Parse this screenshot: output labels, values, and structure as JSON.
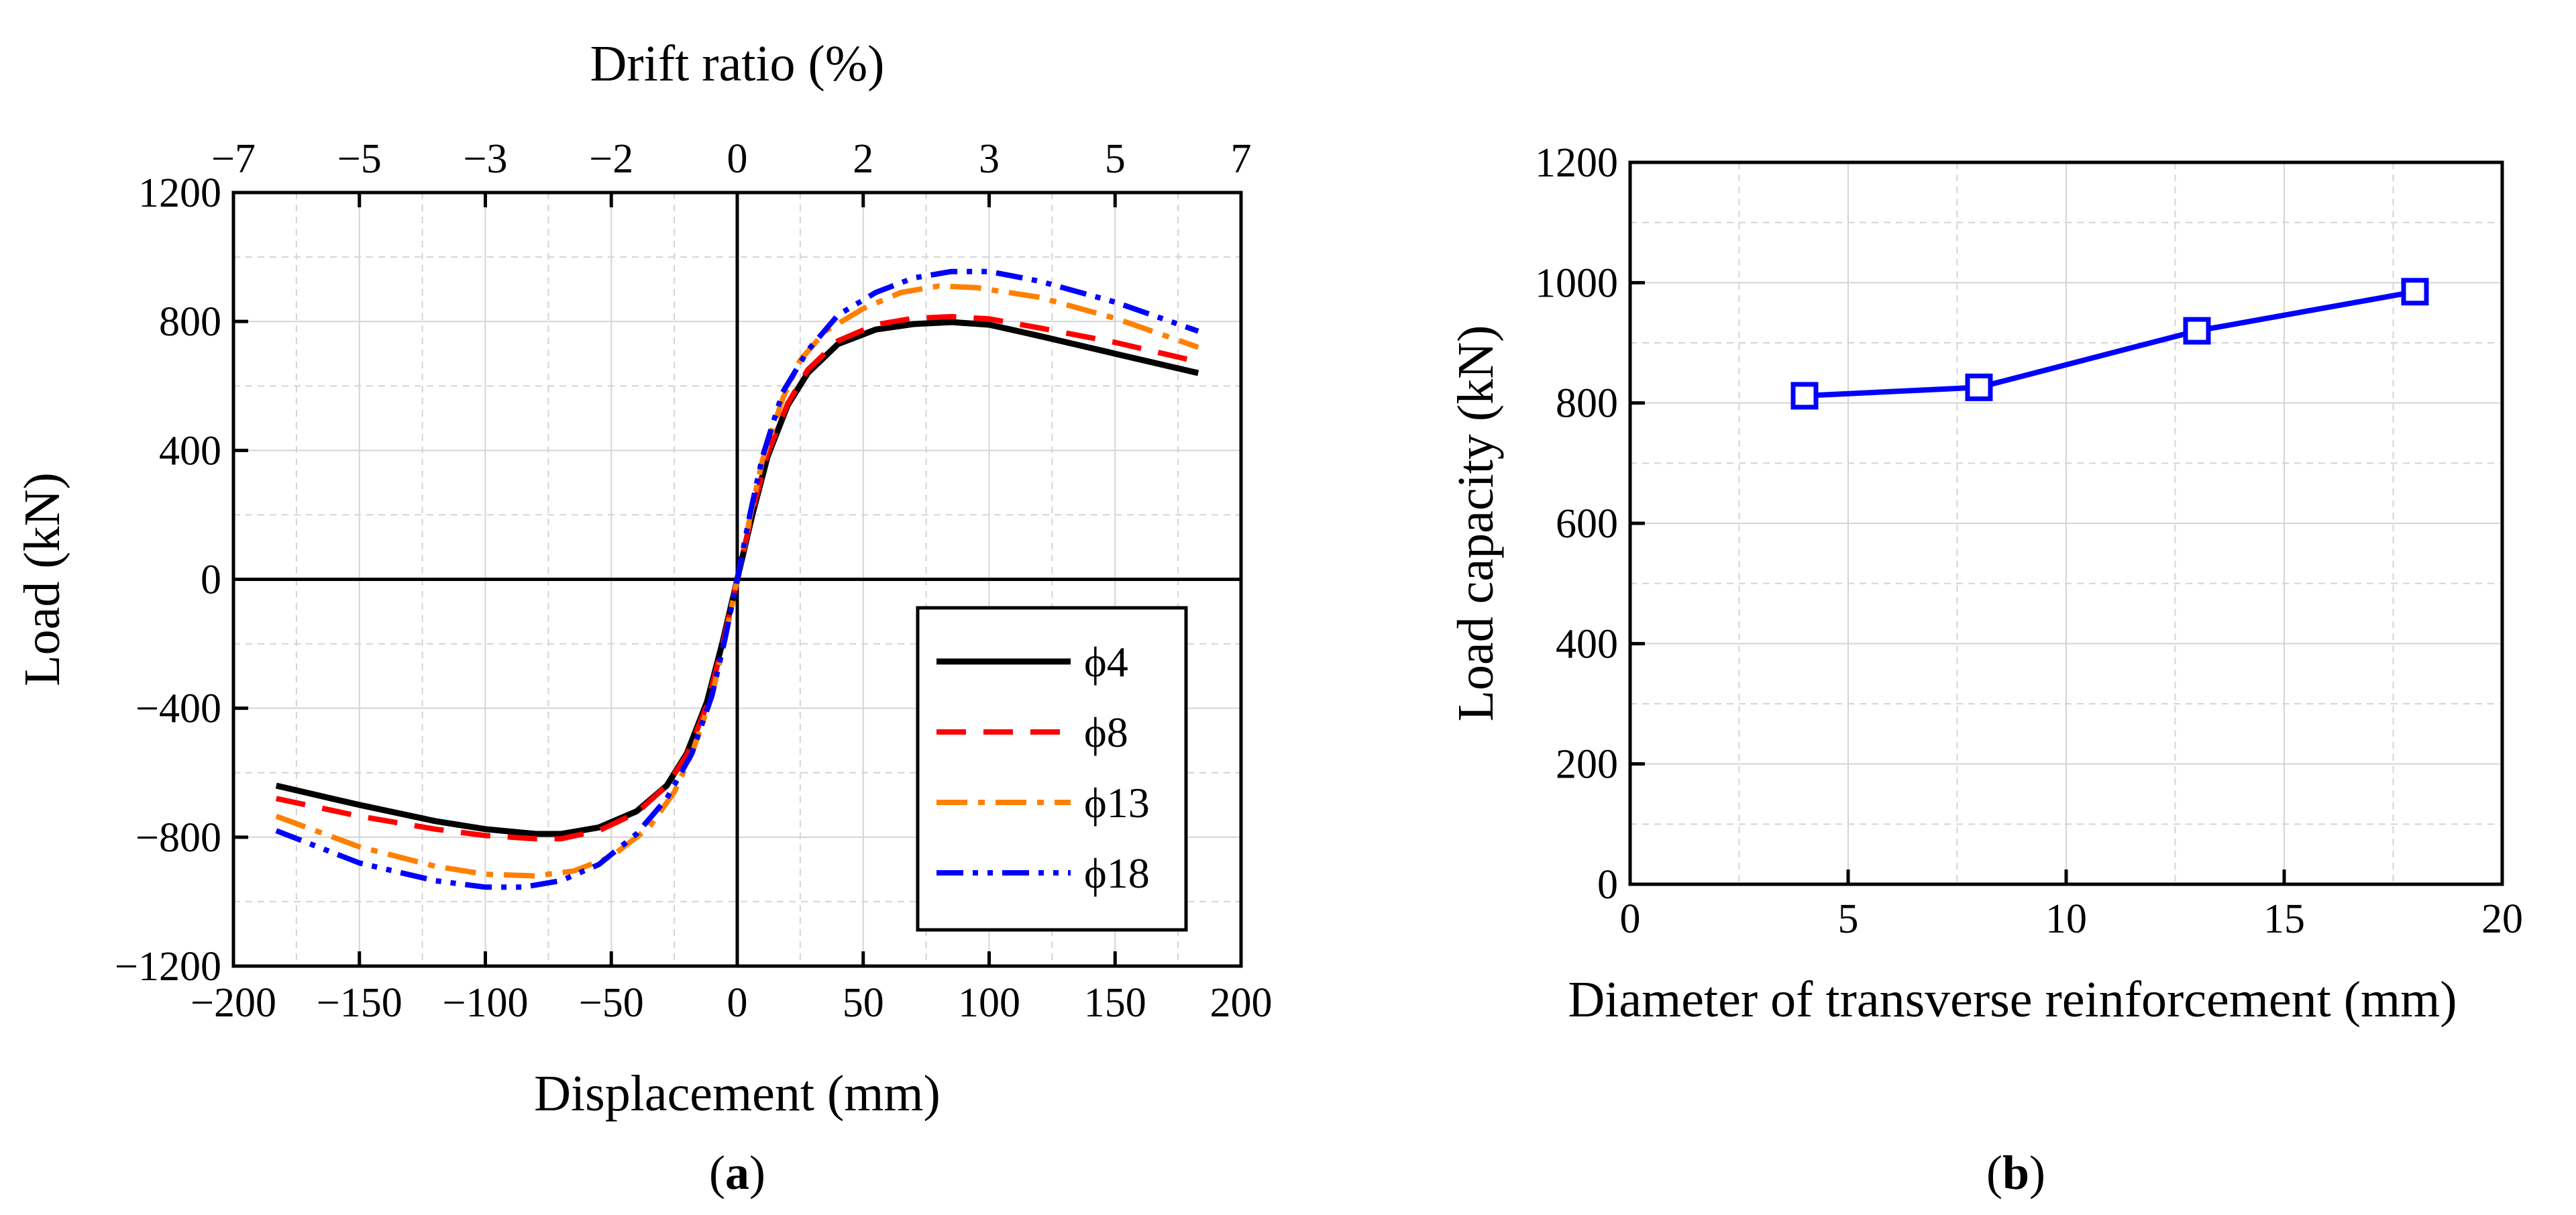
{
  "panels": {
    "a": {
      "caption_open": "(",
      "caption_letter": "a",
      "caption_close": ")"
    },
    "b": {
      "caption_open": "(",
      "caption_letter": "b",
      "caption_close": ")"
    }
  },
  "chart_data": [
    {
      "type": "line",
      "panel": "a",
      "title": "",
      "xlabel": "Displacement (mm)",
      "ylabel": "Load (kN)",
      "x2label": "Drift ratio (%)",
      "xlim": [
        -200,
        200
      ],
      "ylim": [
        -1200,
        1200
      ],
      "xticks": [
        -200,
        -150,
        -100,
        -50,
        0,
        50,
        100,
        150,
        200
      ],
      "xtick_labels": [
        "−200",
        "−150",
        "−100",
        "−50",
        "0",
        "50",
        "100",
        "150",
        "200"
      ],
      "yticks": [
        -1200,
        -800,
        -400,
        0,
        400,
        800,
        1200
      ],
      "ytick_labels": [
        "−1200",
        "−800",
        "−400",
        "0",
        "400",
        "800",
        "1200"
      ],
      "x2ticks": [
        -200,
        -150,
        -100,
        -50,
        0,
        50,
        100,
        150,
        200
      ],
      "x2tick_labels": [
        "−7",
        "−5",
        "−3",
        "−2",
        "0",
        "2",
        "3",
        "5",
        "7"
      ],
      "grid": true,
      "zero_lines": true,
      "legend_position": "bottom-right",
      "series": [
        {
          "name": "ϕ4",
          "color": "#000000",
          "dash": "solid",
          "x": [
            -183,
            -150,
            -120,
            -100,
            -80,
            -70,
            -55,
            -40,
            -28,
            -20,
            -12,
            -6,
            0,
            6,
            12,
            20,
            28,
            40,
            55,
            70,
            85,
            100,
            120,
            150,
            183
          ],
          "y": [
            -640,
            -700,
            -750,
            -775,
            -790,
            -790,
            -770,
            -720,
            -640,
            -540,
            -380,
            -200,
            0,
            200,
            380,
            540,
            640,
            730,
            775,
            792,
            798,
            790,
            755,
            700,
            640
          ]
        },
        {
          "name": "ϕ8",
          "color": "#ff0000",
          "dash": "dashed",
          "x": [
            -183,
            -150,
            -120,
            -100,
            -80,
            -70,
            -55,
            -40,
            -28,
            -20,
            -12,
            -6,
            0,
            6,
            12,
            20,
            28,
            40,
            55,
            70,
            85,
            100,
            120,
            150,
            183
          ],
          "y": [
            -680,
            -735,
            -775,
            -795,
            -805,
            -805,
            -780,
            -725,
            -640,
            -545,
            -390,
            -210,
            0,
            210,
            390,
            545,
            650,
            740,
            790,
            810,
            815,
            808,
            780,
            735,
            675
          ]
        },
        {
          "name": "ϕ13",
          "color": "#ff8000",
          "dash": "dashdot",
          "x": [
            -183,
            -150,
            -120,
            -100,
            -80,
            -65,
            -50,
            -35,
            -25,
            -18,
            -10,
            -5,
            0,
            5,
            10,
            18,
            25,
            35,
            50,
            65,
            80,
            95,
            120,
            150,
            183
          ],
          "y": [
            -735,
            -830,
            -890,
            -915,
            -920,
            -905,
            -860,
            -770,
            -660,
            -540,
            -360,
            -190,
            0,
            190,
            370,
            560,
            680,
            770,
            840,
            890,
            910,
            905,
            875,
            810,
            720
          ]
        },
        {
          "name": "ϕ18",
          "color": "#0000ff",
          "dash": "dashdotdot",
          "x": [
            -183,
            -150,
            -120,
            -100,
            -85,
            -70,
            -55,
            -40,
            -28,
            -18,
            -10,
            -5,
            0,
            5,
            10,
            18,
            28,
            40,
            55,
            70,
            85,
            100,
            120,
            150,
            183
          ],
          "y": [
            -780,
            -880,
            -935,
            -955,
            -955,
            -935,
            -885,
            -790,
            -680,
            -540,
            -360,
            -190,
            0,
            200,
            380,
            580,
            710,
            820,
            890,
            935,
            955,
            955,
            925,
            860,
            770
          ]
        }
      ]
    },
    {
      "type": "line",
      "panel": "b",
      "title": "",
      "xlabel": "Diameter of transverse reinforcement (mm)",
      "ylabel": "Load capacity (kN)",
      "xlim": [
        0,
        20
      ],
      "ylim": [
        0,
        1200
      ],
      "xticks": [
        0,
        5,
        10,
        15,
        20
      ],
      "xtick_labels": [
        "0",
        "5",
        "10",
        "15",
        "20"
      ],
      "yticks": [
        0,
        200,
        400,
        600,
        800,
        1000,
        1200
      ],
      "ytick_labels": [
        "0",
        "200",
        "400",
        "600",
        "800",
        "1000",
        "1200"
      ],
      "grid": true,
      "marker": "open-square",
      "series": [
        {
          "color": "#0000ff",
          "x": [
            4,
            8,
            13,
            18
          ],
          "y": [
            812,
            826,
            920,
            985
          ]
        }
      ]
    }
  ]
}
